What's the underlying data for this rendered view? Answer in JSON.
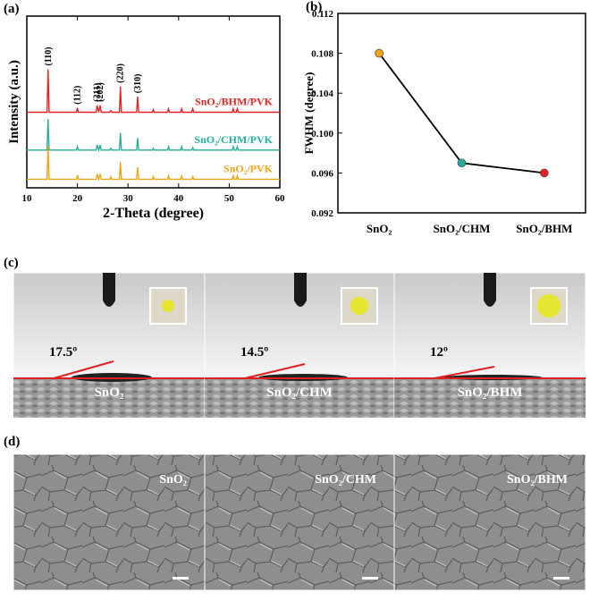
{
  "chart_data": [
    {
      "type": "line",
      "panel_label": "(a)",
      "xlabel": "2-Theta (degree)",
      "ylabel": "Intensity (a.u.)",
      "xlim": [
        10,
        60
      ],
      "xticks": [
        10,
        20,
        30,
        40,
        50,
        60
      ],
      "ylim": [
        0,
        100
      ],
      "x": [
        10,
        14.0,
        14.2,
        14.4,
        19.8,
        20,
        20.2,
        23.7,
        23.9,
        24.2,
        24.5,
        24.7,
        26.4,
        26.6,
        26.8,
        28.3,
        28.5,
        28.7,
        31.7,
        31.9,
        32.1,
        34.8,
        35,
        35.2,
        37.8,
        38,
        38.2,
        40.4,
        40.6,
        40.8,
        42.6,
        42.8,
        43,
        50.6,
        50.8,
        51,
        51.4,
        51.6,
        51.8,
        60
      ],
      "series": [
        {
          "name": "SnO₂/BHM/PVK",
          "color": "#e02424",
          "values": [
            44,
            44,
            69,
            44,
            44,
            46.5,
            44,
            44,
            48,
            44,
            48,
            44,
            44,
            45,
            44,
            44,
            59,
            44,
            44,
            53,
            44,
            44,
            45.5,
            44,
            44,
            46,
            44,
            44,
            46,
            44,
            44,
            46,
            44,
            44,
            46,
            44,
            44,
            46,
            44,
            44
          ]
        },
        {
          "name": "SnO₂/CHM/PVK",
          "color": "#26ad9c",
          "values": [
            22,
            22,
            40,
            22,
            22,
            24,
            22,
            22,
            25,
            22,
            25,
            22,
            22,
            23,
            22,
            22,
            32,
            22,
            22,
            29,
            22,
            22,
            23,
            22,
            22,
            24,
            22,
            22,
            24,
            22,
            22,
            23.5,
            22,
            22,
            24,
            22,
            22,
            24,
            22,
            22
          ]
        },
        {
          "name": "SnO₂/PVK",
          "color": "#f0a418",
          "values": [
            5,
            5,
            24.5,
            5,
            5,
            7.5,
            5,
            5,
            8,
            5,
            8,
            5,
            5,
            6.5,
            5,
            5,
            15,
            5,
            5,
            12,
            5,
            5,
            6.5,
            5,
            5,
            7,
            5,
            5,
            7,
            5,
            5,
            6.5,
            5,
            5,
            7,
            5,
            5,
            7,
            5,
            5
          ]
        }
      ],
      "annotations": [
        {
          "text": "(110)",
          "x": 14.2
        },
        {
          "text": "(112)",
          "x": 20
        },
        {
          "text": "(211)",
          "x": 23.9
        },
        {
          "text": "(202)",
          "x": 24.5
        },
        {
          "text": "(220)",
          "x": 28.5
        },
        {
          "text": "(310)",
          "x": 31.9
        }
      ]
    },
    {
      "type": "line",
      "panel_label": "(b)",
      "ylabel": "FWHM (degree)",
      "categories": [
        "SnO₂",
        "SnO₂/CHM",
        "SnO₂/BHM"
      ],
      "values": [
        0.108,
        0.097,
        0.096
      ],
      "color": "#000000",
      "point_colors": [
        "#f0a418",
        "#26ad9c",
        "#e02424"
      ],
      "ylim": [
        0.092,
        0.112
      ],
      "yticks": [
        0.092,
        0.096,
        {
          "value": 0.1,
          "label": "0.100"
        },
        0.104,
        0.108,
        0.112
      ]
    }
  ],
  "panel_c": {
    "label": "(c)",
    "images": [
      {
        "angle": "17.5º",
        "label": "SnO₂"
      },
      {
        "angle": "14.5º",
        "label": "SnO₂/CHM"
      },
      {
        "angle": "12º",
        "label": "SnO₂/BHM"
      }
    ]
  },
  "panel_d": {
    "label": "(d)",
    "images": [
      {
        "label": "SnO₂"
      },
      {
        "label": "SnO₂/CHM"
      },
      {
        "label": "SnO₂/BHM"
      }
    ]
  }
}
